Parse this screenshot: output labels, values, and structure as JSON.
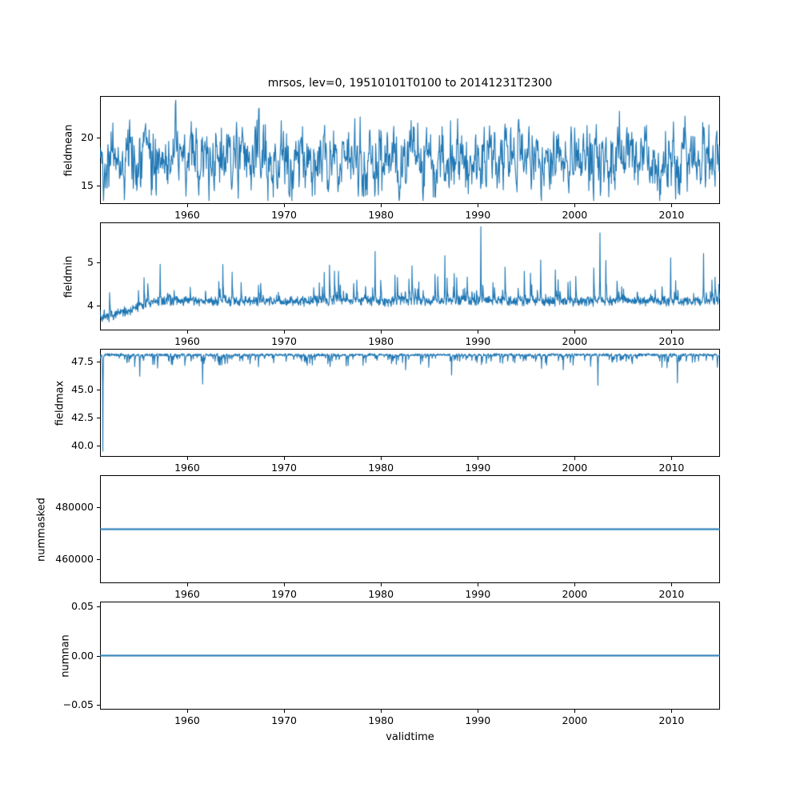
{
  "figure": {
    "title": "mrsos, lev=0, 19510101T0100 to 20141231T2300",
    "xlabel": "validtime",
    "line_color": "#1f77b4",
    "axis_color": "#000000",
    "background": "#ffffff"
  },
  "chart_data": [
    {
      "type": "line",
      "ylabel": "fieldmean",
      "xlim": [
        1951,
        2015
      ],
      "ylim": [
        13.05,
        24.35
      ],
      "grid": false,
      "xticks": [
        {
          "v": 1960,
          "label": "1960"
        },
        {
          "v": 1970,
          "label": "1970"
        },
        {
          "v": 1980,
          "label": "1980"
        },
        {
          "v": 1990,
          "label": "1990"
        },
        {
          "v": 2000,
          "label": "2000"
        },
        {
          "v": 2010,
          "label": "2010"
        }
      ],
      "yticks": [
        {
          "v": 15,
          "label": "15"
        },
        {
          "v": 20,
          "label": "20"
        }
      ],
      "series": [
        {
          "name": "fieldmean",
          "color": "#1f77b4",
          "gen": {
            "kind": "noisy",
            "seed": 42,
            "n": 1400,
            "base": 17.7,
            "scale": 3.2,
            "ar": 0.5,
            "min": 13.4,
            "max": 23.9
          }
        }
      ]
    },
    {
      "type": "line",
      "ylabel": "fieldmin",
      "xlim": [
        1951,
        2015
      ],
      "ylim": [
        3.42,
        5.92
      ],
      "grid": false,
      "xticks": [
        {
          "v": 1960,
          "label": "1960"
        },
        {
          "v": 1970,
          "label": "1970"
        },
        {
          "v": 1980,
          "label": "1980"
        },
        {
          "v": 1990,
          "label": "1990"
        },
        {
          "v": 2000,
          "label": "2000"
        },
        {
          "v": 2010,
          "label": "2010"
        }
      ],
      "yticks": [
        {
          "v": 4,
          "label": "4"
        },
        {
          "v": 5,
          "label": "5"
        }
      ],
      "series": [
        {
          "name": "fieldmin",
          "color": "#1f77b4",
          "gen": {
            "kind": "spiky",
            "seed": 7,
            "n": 2000,
            "base": 4.1,
            "base0": 3.68,
            "ramp": 6,
            "noise": 0.13,
            "prob": 0.05,
            "spikeMin": 0.12,
            "spikeScale": 0.9,
            "decay": 0.55,
            "dir": 1,
            "bigSpikes": [
              {
                "year": 1990.3,
                "amp": 1.72
              },
              {
                "year": 2002.6,
                "amp": 1.58
              },
              {
                "year": 1979.4,
                "amp": 1.15
              },
              {
                "year": 1986.6,
                "amp": 1.05
              },
              {
                "year": 2009.9,
                "amp": 1.0
              },
              {
                "year": 2013.3,
                "amp": 1.1
              },
              {
                "year": 1996.5,
                "amp": 0.95
              },
              {
                "year": 1957.2,
                "amp": 0.85
              }
            ]
          }
        }
      ]
    },
    {
      "type": "line",
      "ylabel": "fieldmax",
      "xlim": [
        1951,
        2015
      ],
      "ylim": [
        39.0,
        48.64
      ],
      "grid": false,
      "xticks": [
        {
          "v": 1960,
          "label": "1960"
        },
        {
          "v": 1970,
          "label": "1970"
        },
        {
          "v": 1980,
          "label": "1980"
        },
        {
          "v": 1990,
          "label": "1990"
        },
        {
          "v": 2000,
          "label": "2000"
        },
        {
          "v": 2010,
          "label": "2010"
        }
      ],
      "yticks": [
        {
          "v": 40.0,
          "label": "40.0"
        },
        {
          "v": 42.5,
          "label": "42.5"
        },
        {
          "v": 45.0,
          "label": "45.0"
        },
        {
          "v": 47.5,
          "label": "47.5"
        }
      ],
      "series": [
        {
          "name": "fieldmax",
          "color": "#1f77b4",
          "gen": {
            "kind": "spiky",
            "seed": 13,
            "n": 2200,
            "base": 48.1,
            "noise": 0.14,
            "prob": 0.09,
            "spikeMin": 0.25,
            "spikeScale": 1.2,
            "decay": 0.5,
            "dir": -1,
            "bigSpikes": [
              {
                "year": 1951.3,
                "amp": 8.6
              },
              {
                "year": 1961.6,
                "amp": 2.6
              },
              {
                "year": 2002.4,
                "amp": 2.7
              },
              {
                "year": 2010.6,
                "amp": 2.5
              },
              {
                "year": 1955.1,
                "amp": 1.9
              },
              {
                "year": 1987.3,
                "amp": 1.8
              }
            ]
          }
        }
      ]
    },
    {
      "type": "line",
      "ylabel": "nummasked",
      "xlim": [
        1951,
        2015
      ],
      "ylim": [
        451000,
        492000
      ],
      "grid": false,
      "xticks": [
        {
          "v": 1960,
          "label": "1960"
        },
        {
          "v": 1970,
          "label": "1970"
        },
        {
          "v": 1980,
          "label": "1980"
        },
        {
          "v": 1990,
          "label": "1990"
        },
        {
          "v": 2000,
          "label": "2000"
        },
        {
          "v": 2010,
          "label": "2010"
        }
      ],
      "yticks": [
        {
          "v": 460000,
          "label": "460000"
        },
        {
          "v": 480000,
          "label": "480000"
        }
      ],
      "series": [
        {
          "name": "nummasked",
          "color": "#1f77b4",
          "gen": {
            "kind": "constant",
            "value": 471500
          }
        }
      ]
    },
    {
      "type": "line",
      "ylabel": "numnan",
      "xlim": [
        1951,
        2015
      ],
      "ylim": [
        -0.055,
        0.055
      ],
      "grid": false,
      "xticks": [
        {
          "v": 1960,
          "label": "1960"
        },
        {
          "v": 1970,
          "label": "1970"
        },
        {
          "v": 1980,
          "label": "1980"
        },
        {
          "v": 1990,
          "label": "1990"
        },
        {
          "v": 2000,
          "label": "2000"
        },
        {
          "v": 2010,
          "label": "2010"
        }
      ],
      "yticks": [
        {
          "v": -0.05,
          "label": "−0.05"
        },
        {
          "v": 0.0,
          "label": "0.00"
        },
        {
          "v": 0.05,
          "label": "0.05"
        }
      ],
      "series": [
        {
          "name": "numnan",
          "color": "#1f77b4",
          "gen": {
            "kind": "constant",
            "value": 0
          }
        }
      ]
    }
  ]
}
